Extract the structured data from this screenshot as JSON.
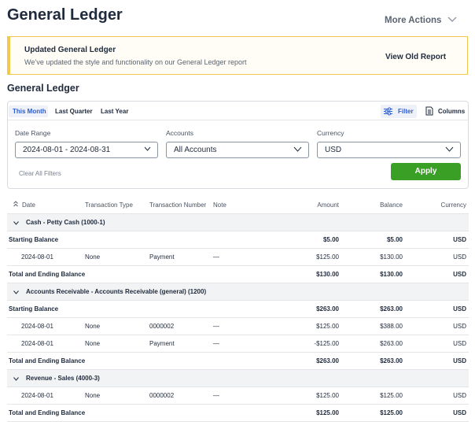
{
  "header": {
    "title": "General Ledger",
    "more_actions": "More Actions"
  },
  "banner": {
    "title": "Updated General Ledger",
    "text": "We’ve updated the style and functionality on our General Ledger report",
    "link": "View Old Report"
  },
  "report": {
    "title": "General Ledger"
  },
  "tabs": [
    "This Month",
    "Last Quarter",
    "Last Year"
  ],
  "toolbar": {
    "filter": "Filter",
    "columns": "Columns"
  },
  "filters": {
    "date_range": {
      "label": "Date Range",
      "value": "2024-08-01 - 2024-08-31"
    },
    "accounts": {
      "label": "Accounts",
      "value": "All Accounts"
    },
    "currency": {
      "label": "Currency",
      "value": "USD"
    },
    "clear": "Clear All Filters",
    "apply": "Apply"
  },
  "table": {
    "columns": [
      "Date",
      "Transaction Type",
      "Transaction Number",
      "Note",
      "Amount",
      "Balance",
      "Currency"
    ],
    "groups": [
      {
        "name": "Cash - Petty Cash (1000-1)",
        "starting": [
          "Starting Balance",
          "$5.00",
          "$5.00",
          "USD"
        ],
        "rows": [
          [
            "2024-08-01",
            "None",
            "Payment",
            "—",
            "$125.00",
            "$130.00",
            "USD"
          ]
        ],
        "ending": [
          "Total and Ending Balance",
          "$130.00",
          "$130.00",
          "USD"
        ]
      },
      {
        "name": "Accounts Receivable - Accounts Receivable (general) (1200)",
        "starting": [
          "Starting Balance",
          "$263.00",
          "$263.00",
          "USD"
        ],
        "rows": [
          [
            "2024-08-01",
            "None",
            "0000002",
            "—",
            "$125.00",
            "$388.00",
            "USD"
          ],
          [
            "2024-08-01",
            "None",
            "Payment",
            "—",
            "-$125.00",
            "$263.00",
            "USD"
          ]
        ],
        "ending": [
          "Total and Ending Balance",
          "$263.00",
          "$263.00",
          "USD"
        ]
      },
      {
        "name": "Revenue - Sales (4000-3)",
        "rows": [
          [
            "2024-08-01",
            "None",
            "0000002",
            "—",
            "$125.00",
            "$125.00",
            "USD"
          ]
        ],
        "ending": [
          "Total and Ending Balance",
          "$125.00",
          "$125.00",
          "USD"
        ]
      }
    ]
  }
}
